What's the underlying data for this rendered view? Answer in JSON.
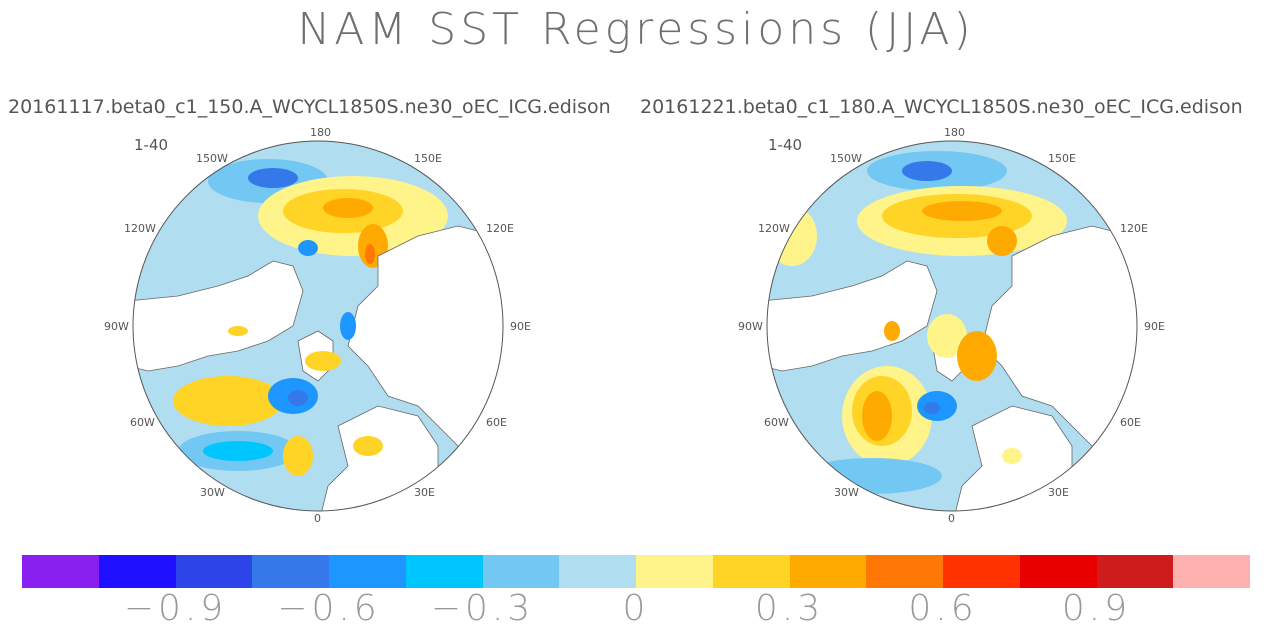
{
  "title": "NAM SST Regressions (JJA)",
  "panels": [
    {
      "name": "20161117.beta0_c1_150.A_WCYCL1850S.ne30_oEC_ICG.edison",
      "label": "1-40",
      "lon": {
        "top": "180",
        "bottom": "0",
        "left": "90W",
        "right": "90E",
        "ul1": "150W",
        "ul2": "120W",
        "ur1": "150E",
        "ur2": "120E",
        "ll1": "60W",
        "ll2": "30W",
        "lr1": "60E",
        "lr2": "30E"
      }
    },
    {
      "name": "20161221.beta0_c1_180.A_WCYCL1850S.ne30_oEC_ICG.edison",
      "label": "1-40",
      "lon": {
        "top": "180",
        "bottom": "0",
        "left": "90W",
        "right": "90E",
        "ul1": "150W",
        "ul2": "120W",
        "ur1": "150E",
        "ur2": "120E",
        "ll1": "60W",
        "ll2": "30W",
        "lr1": "60E",
        "lr2": "30E"
      }
    }
  ],
  "colorbar": {
    "colors": [
      "#8a20f0",
      "#1f10ff",
      "#2d44e8",
      "#3478ea",
      "#1e96ff",
      "#00c6ff",
      "#72c8f2",
      "#b0ddf0",
      "#fff48a",
      "#ffd427",
      "#ffaa00",
      "#ff7806",
      "#ff3200",
      "#e80000",
      "#ce1c1c",
      "#ffb0b0"
    ],
    "ticks": [
      "−0.9",
      "−0.6",
      "−0.3",
      "0",
      "0.3",
      "0.6",
      "0.9"
    ]
  }
}
